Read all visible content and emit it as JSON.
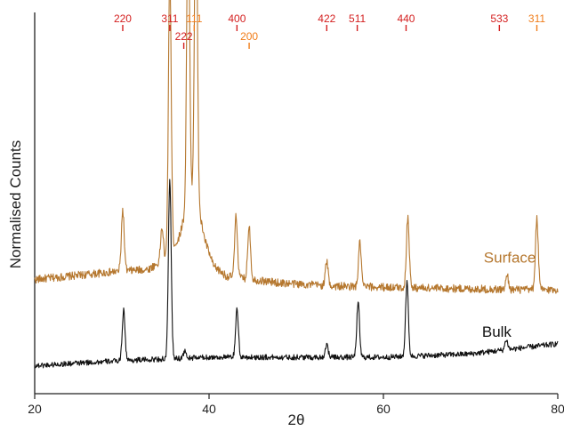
{
  "colors": {
    "surface": "#B5772E",
    "bulk": "#111111",
    "index_red": "#D42020",
    "index_orange": "#F07D1A"
  },
  "chart_data": {
    "type": "line",
    "title": "",
    "xlabel": "2θ",
    "ylabel": "Normalised Counts",
    "xlim": [
      20,
      80
    ],
    "xticks": [
      "20",
      "40",
      "60",
      "80"
    ],
    "grid": false,
    "series": [
      {
        "name": "Surface",
        "color": "surface",
        "baseline": [
          [
            20,
            0.33
          ],
          [
            28,
            0.35
          ],
          [
            30,
            0.355
          ],
          [
            33,
            0.36
          ],
          [
            35,
            0.39
          ],
          [
            36.5,
            0.45
          ],
          [
            37.5,
            0.55
          ],
          [
            38.3,
            0.6
          ],
          [
            39.5,
            0.45
          ],
          [
            40.5,
            0.37
          ],
          [
            42,
            0.34
          ],
          [
            48,
            0.32
          ],
          [
            55,
            0.31
          ],
          [
            65,
            0.305
          ],
          [
            75,
            0.3
          ],
          [
            80,
            0.3
          ]
        ],
        "noise": 0.012,
        "peaks": [
          {
            "x": 30.1,
            "height": 0.18
          },
          {
            "x": 34.6,
            "height": 0.1
          },
          {
            "x": 35.5,
            "height": 0.83
          },
          {
            "x": 37.6,
            "height": 0.95
          },
          {
            "x": 38.5,
            "height": 1.0
          },
          {
            "x": 43.1,
            "height": 0.18
          },
          {
            "x": 44.6,
            "height": 0.16
          },
          {
            "x": 53.5,
            "height": 0.07
          },
          {
            "x": 57.3,
            "height": 0.13
          },
          {
            "x": 62.8,
            "height": 0.21
          },
          {
            "x": 74.2,
            "height": 0.04
          },
          {
            "x": 77.6,
            "height": 0.21
          }
        ]
      },
      {
        "name": "Bulk",
        "color": "bulk",
        "baseline": [
          [
            20,
            0.075
          ],
          [
            30,
            0.09
          ],
          [
            40,
            0.1
          ],
          [
            50,
            0.1
          ],
          [
            60,
            0.1
          ],
          [
            70,
            0.11
          ],
          [
            80,
            0.14
          ]
        ],
        "noise": 0.008,
        "peaks": [
          {
            "x": 30.2,
            "height": 0.15
          },
          {
            "x": 35.5,
            "height": 0.53
          },
          {
            "x": 37.2,
            "height": 0.02
          },
          {
            "x": 43.2,
            "height": 0.14
          },
          {
            "x": 53.5,
            "height": 0.04
          },
          {
            "x": 57.1,
            "height": 0.16
          },
          {
            "x": 62.7,
            "height": 0.22
          },
          {
            "x": 74.1,
            "height": 0.03
          }
        ]
      }
    ],
    "series_labels": [
      {
        "text": "Surface",
        "color": "surface",
        "x": 74.5,
        "y": 0.38
      },
      {
        "text": "Bulk",
        "color": "bulk",
        "x": 73.0,
        "y": 0.16
      }
    ],
    "peak_indices": [
      {
        "text": "220",
        "x": 30.1,
        "row": 1,
        "color": "index_red"
      },
      {
        "text": "311",
        "x": 35.5,
        "row": 1,
        "color": "index_red"
      },
      {
        "text": "111",
        "x": 38.3,
        "row": 1,
        "color": "index_orange"
      },
      {
        "text": "222",
        "x": 37.1,
        "row": 2,
        "color": "index_red"
      },
      {
        "text": "400",
        "x": 43.2,
        "row": 1,
        "color": "index_red"
      },
      {
        "text": "200",
        "x": 44.6,
        "row": 2,
        "color": "index_orange"
      },
      {
        "text": "422",
        "x": 53.5,
        "row": 1,
        "color": "index_red"
      },
      {
        "text": "511",
        "x": 57.0,
        "row": 1,
        "color": "index_red"
      },
      {
        "text": "440",
        "x": 62.6,
        "row": 1,
        "color": "index_red"
      },
      {
        "text": "533",
        "x": 73.3,
        "row": 1,
        "color": "index_red"
      },
      {
        "text": "311",
        "x": 77.6,
        "row": 1,
        "color": "index_orange"
      }
    ]
  }
}
